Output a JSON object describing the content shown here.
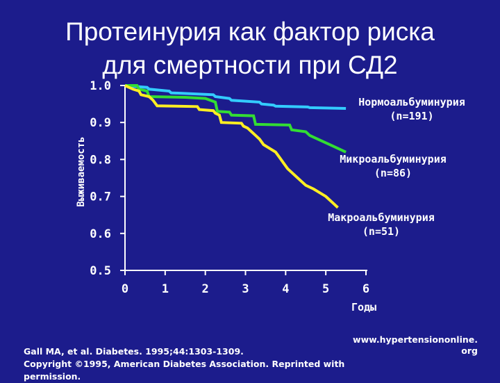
{
  "title_lines": [
    "Протеинурия как фактор риска",
    "для смертности при СД2"
  ],
  "chart_data": {
    "type": "line",
    "title": "Протеинурия как фактор риска для смертности при СД2",
    "xlabel": "Годы",
    "ylabel": "Выживаемость",
    "xlim": [
      0,
      6
    ],
    "ylim": [
      0.5,
      1.0
    ],
    "x_ticks": [
      "0",
      "1",
      "2",
      "3",
      "4",
      "5",
      "6"
    ],
    "y_ticks": [
      "0.5",
      "0.6",
      "0.7",
      "0.8",
      "0.9",
      "1.0"
    ],
    "series": [
      {
        "name": "Нормоальбуминурия (n=191)",
        "label_lines": [
          "Нормоальбуминурия",
          "(n=191)"
        ],
        "color": "#33ccff",
        "points": [
          [
            0,
            1.0
          ],
          [
            0.15,
            1.0
          ],
          [
            0.2,
            0.998
          ],
          [
            0.55,
            0.995
          ],
          [
            0.6,
            0.99
          ],
          [
            1.1,
            0.985
          ],
          [
            1.15,
            0.98
          ],
          [
            2.2,
            0.975
          ],
          [
            2.25,
            0.97
          ],
          [
            2.6,
            0.965
          ],
          [
            2.65,
            0.96
          ],
          [
            3.35,
            0.955
          ],
          [
            3.4,
            0.95
          ],
          [
            3.7,
            0.947
          ],
          [
            3.75,
            0.944
          ],
          [
            4.55,
            0.942
          ],
          [
            4.6,
            0.94
          ],
          [
            5.5,
            0.938
          ]
        ]
      },
      {
        "name": "Микроальбуминурия (n=86)",
        "label_lines": [
          "Микроальбуминурия",
          "(n=86)"
        ],
        "color": "#33dd33",
        "points": [
          [
            0,
            1.0
          ],
          [
            0.3,
            1.0
          ],
          [
            0.35,
            0.99
          ],
          [
            0.55,
            0.985
          ],
          [
            0.6,
            0.97
          ],
          [
            1.5,
            0.968
          ],
          [
            2.0,
            0.965
          ],
          [
            2.25,
            0.955
          ],
          [
            2.3,
            0.93
          ],
          [
            2.6,
            0.928
          ],
          [
            2.65,
            0.92
          ],
          [
            3.2,
            0.918
          ],
          [
            3.25,
            0.895
          ],
          [
            4.1,
            0.893
          ],
          [
            4.15,
            0.88
          ],
          [
            4.5,
            0.875
          ],
          [
            4.6,
            0.865
          ],
          [
            4.9,
            0.85
          ],
          [
            5.1,
            0.84
          ],
          [
            5.3,
            0.83
          ],
          [
            5.5,
            0.82
          ]
        ]
      },
      {
        "name": "Макроальбуминурия (n=51)",
        "label_lines": [
          "Макроальбуминурия",
          "(n=51)"
        ],
        "color": "#ffee22",
        "points": [
          [
            0,
            1.0
          ],
          [
            0.1,
            0.995
          ],
          [
            0.2,
            0.99
          ],
          [
            0.35,
            0.985
          ],
          [
            0.4,
            0.975
          ],
          [
            0.6,
            0.97
          ],
          [
            0.7,
            0.96
          ],
          [
            0.8,
            0.945
          ],
          [
            1.8,
            0.943
          ],
          [
            1.85,
            0.935
          ],
          [
            2.2,
            0.932
          ],
          [
            2.25,
            0.925
          ],
          [
            2.35,
            0.92
          ],
          [
            2.4,
            0.9
          ],
          [
            2.9,
            0.898
          ],
          [
            2.95,
            0.89
          ],
          [
            3.05,
            0.885
          ],
          [
            3.15,
            0.875
          ],
          [
            3.25,
            0.865
          ],
          [
            3.35,
            0.855
          ],
          [
            3.45,
            0.84
          ],
          [
            3.6,
            0.83
          ],
          [
            3.75,
            0.82
          ],
          [
            3.85,
            0.805
          ],
          [
            3.95,
            0.79
          ],
          [
            4.05,
            0.775
          ],
          [
            4.2,
            0.76
          ],
          [
            4.35,
            0.745
          ],
          [
            4.5,
            0.73
          ],
          [
            4.7,
            0.72
          ],
          [
            4.85,
            0.71
          ],
          [
            5.0,
            0.7
          ],
          [
            5.1,
            0.69
          ],
          [
            5.2,
            0.68
          ],
          [
            5.3,
            0.67
          ]
        ]
      }
    ]
  },
  "footer": {
    "site_lines": [
      "www.hypertensiononline.",
      "org"
    ],
    "citation_lines": [
      "Gall MA, et al. Diabetes. 1995;44:1303-1309.",
      "Copyright ©1995, American Diabetes Association. Reprinted with",
      "permission."
    ]
  }
}
